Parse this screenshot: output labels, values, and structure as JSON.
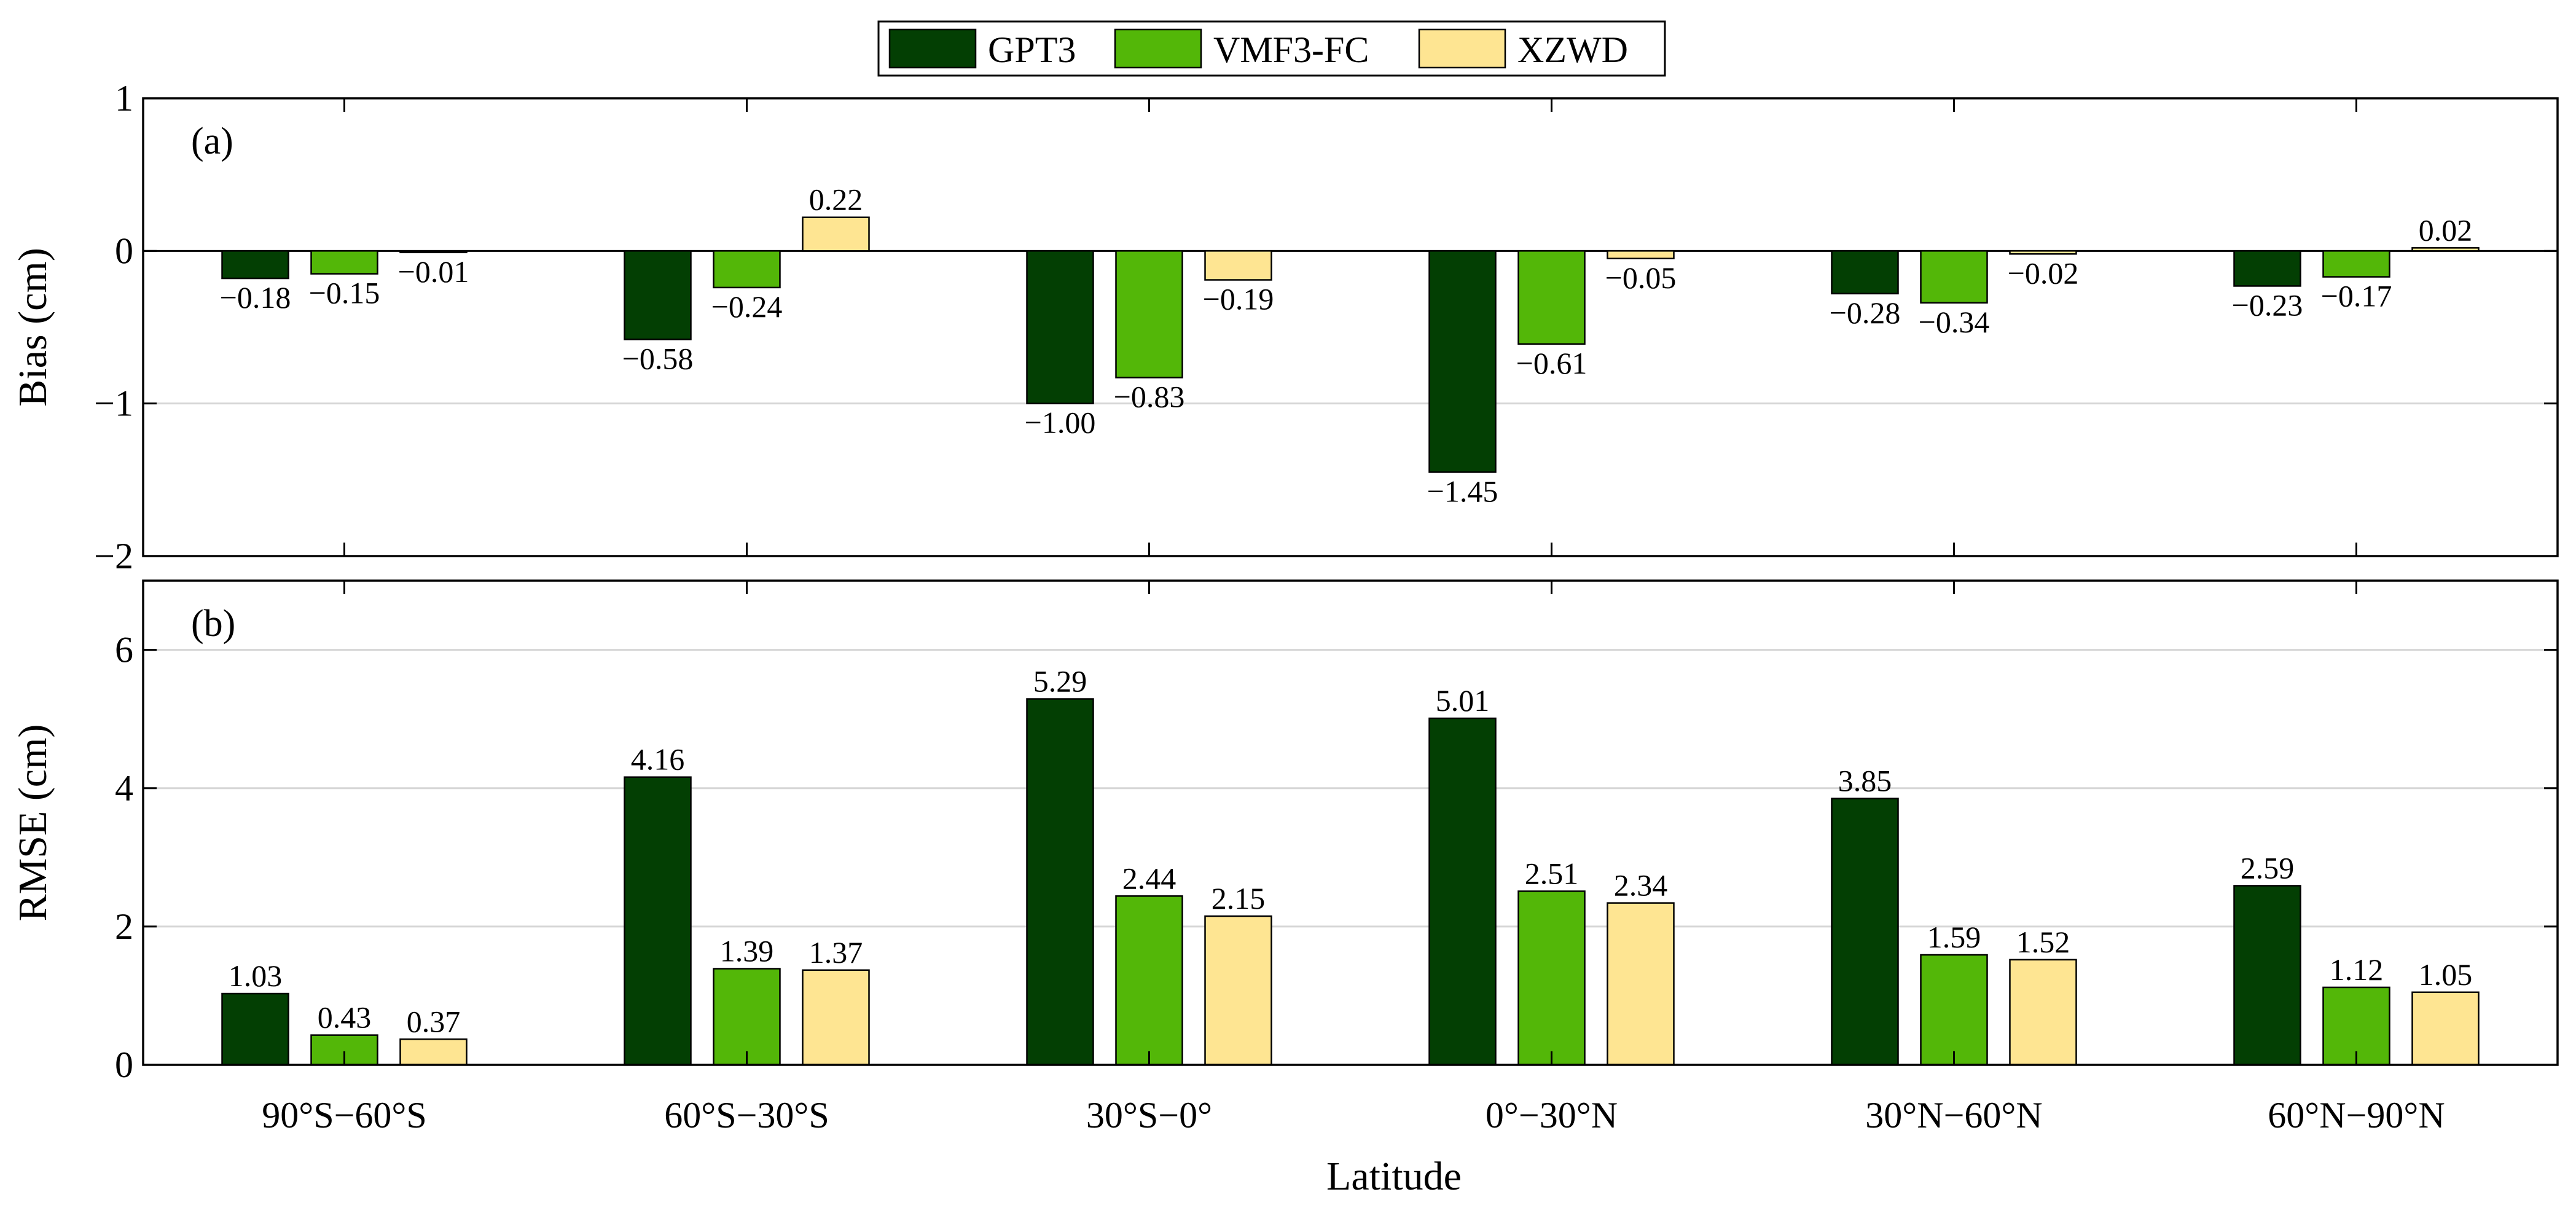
{
  "colors": {
    "GPT3": "#033f03",
    "VMF3-FC": "#53b708",
    "XZWD": "#fee592"
  },
  "legend": {
    "items": [
      "GPT3",
      "VMF3-FC",
      "XZWD"
    ]
  },
  "xlabel": "Latitude",
  "chart_data": [
    {
      "type": "bar",
      "panel_label": "(a)",
      "ylabel": "Bias (cm)",
      "ylim": [
        -2,
        1
      ],
      "yticks": [
        1,
        0,
        -1,
        -2
      ],
      "ytick_labels": [
        "1",
        "0",
        "−1",
        "−2"
      ],
      "grid": true,
      "categories": [
        "90°S−60°S",
        "60°S−30°S",
        "30°S−0°",
        "0°−30°N",
        "30°N−60°N",
        "60°N−90°N"
      ],
      "series": [
        {
          "name": "GPT3",
          "values": [
            -0.18,
            -0.58,
            -1.0,
            -1.45,
            -0.28,
            -0.23
          ],
          "labels": [
            "−0.18",
            "−0.58",
            "−1.00",
            "−1.45",
            "−0.28",
            "−0.23"
          ]
        },
        {
          "name": "VMF3-FC",
          "values": [
            -0.15,
            -0.24,
            -0.83,
            -0.61,
            -0.34,
            -0.17
          ],
          "labels": [
            "−0.15",
            "−0.24",
            "−0.83",
            "−0.61",
            "−0.34",
            "−0.17"
          ]
        },
        {
          "name": "XZWD",
          "values": [
            -0.01,
            0.22,
            -0.19,
            -0.05,
            -0.02,
            0.02
          ],
          "labels": [
            "−0.01",
            "0.22",
            "−0.19",
            "−0.05",
            "−0.02",
            "0.02"
          ]
        }
      ]
    },
    {
      "type": "bar",
      "panel_label": "(b)",
      "ylabel": "RMSE (cm)",
      "ylim": [
        0,
        7
      ],
      "yticks": [
        0,
        2,
        4,
        6
      ],
      "ytick_labels": [
        "0",
        "2",
        "4",
        "6"
      ],
      "grid": true,
      "categories": [
        "90°S−60°S",
        "60°S−30°S",
        "30°S−0°",
        "0°−30°N",
        "30°N−60°N",
        "60°N−90°N"
      ],
      "series": [
        {
          "name": "GPT3",
          "values": [
            1.03,
            4.16,
            5.29,
            5.01,
            3.85,
            2.59
          ],
          "labels": [
            "1.03",
            "4.16",
            "5.29",
            "5.01",
            "3.85",
            "2.59"
          ]
        },
        {
          "name": "VMF3-FC",
          "values": [
            0.43,
            1.39,
            2.44,
            2.51,
            1.59,
            1.12
          ],
          "labels": [
            "0.43",
            "1.39",
            "2.44",
            "2.51",
            "1.59",
            "1.12"
          ]
        },
        {
          "name": "XZWD",
          "values": [
            0.37,
            1.37,
            2.15,
            2.34,
            1.52,
            1.05
          ],
          "labels": [
            "0.37",
            "1.37",
            "2.15",
            "2.34",
            "1.52",
            "1.05"
          ]
        }
      ]
    }
  ]
}
